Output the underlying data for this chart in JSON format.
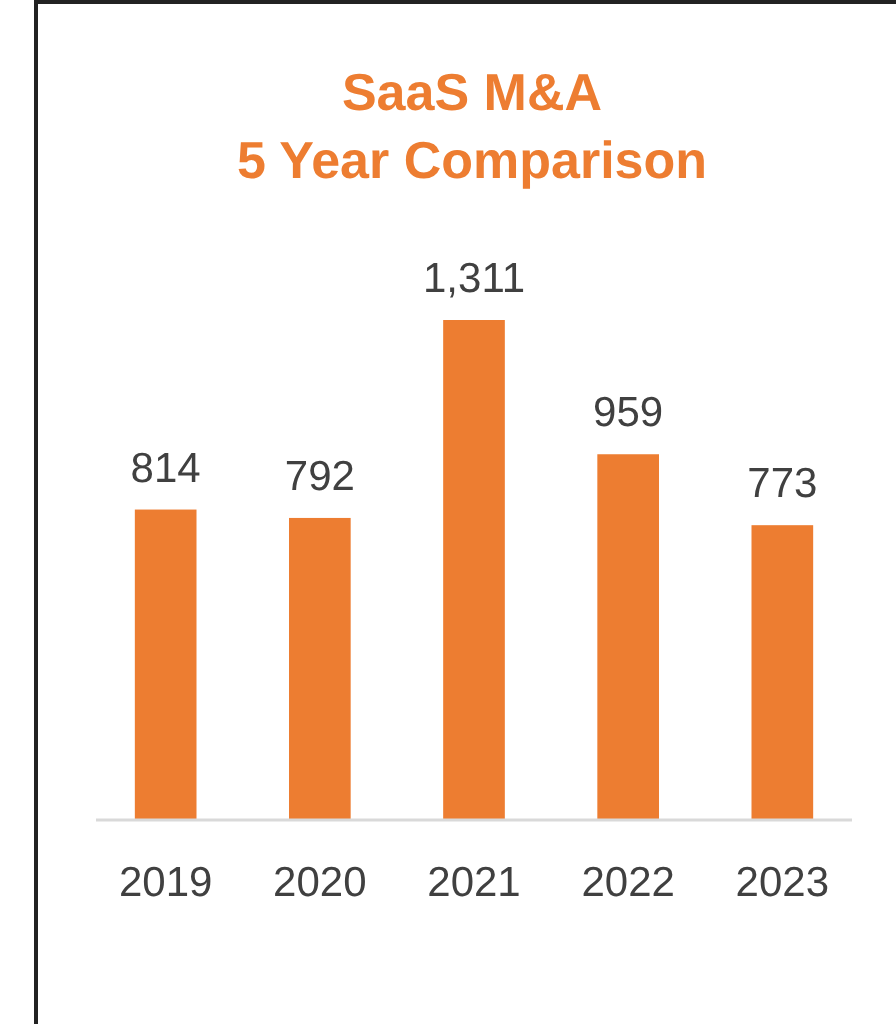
{
  "chart_data": {
    "type": "bar",
    "title": "SaaS M&A",
    "subtitle": "5 Year Comparison",
    "categories": [
      "2019",
      "2020",
      "2021",
      "2022",
      "2023"
    ],
    "values": [
      814,
      792,
      1311,
      959,
      773
    ],
    "color": "#ed7d31",
    "value_labels": [
      "814",
      "792",
      "1,311",
      "959",
      "773"
    ]
  }
}
